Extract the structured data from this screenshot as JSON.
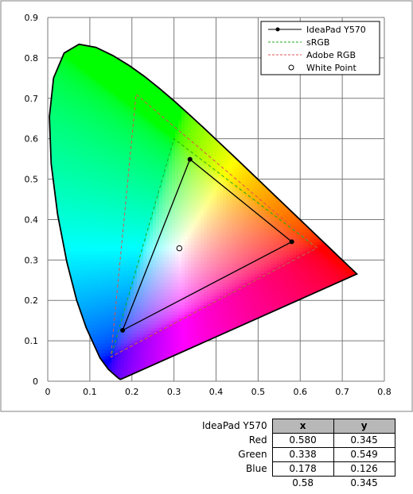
{
  "chart_data": {
    "type": "scatter",
    "title": "",
    "xlabel": "",
    "ylabel": "",
    "xlim": [
      0,
      0.8
    ],
    "ylim": [
      0,
      0.9
    ],
    "x_ticks": [
      "0",
      "0.1",
      "0.2",
      "0.3",
      "0.4",
      "0.5",
      "0.6",
      "0.7",
      "0.8"
    ],
    "y_ticks": [
      "0",
      "0.1",
      "0.2",
      "0.3",
      "0.4",
      "0.5",
      "0.6",
      "0.7",
      "0.8",
      "0.9"
    ],
    "grid": true,
    "legend_position": "top-right",
    "series": [
      {
        "name": "IdeaPad Y570",
        "style": "solid-line-markers",
        "color": "#000000",
        "points": [
          [
            0.58,
            0.345
          ],
          [
            0.338,
            0.549
          ],
          [
            0.178,
            0.126
          ]
        ]
      },
      {
        "name": "sRGB",
        "style": "dashed",
        "color": "#22aa22",
        "points": [
          [
            0.64,
            0.33
          ],
          [
            0.3,
            0.6
          ],
          [
            0.15,
            0.06
          ]
        ]
      },
      {
        "name": "Adobe RGB",
        "style": "dashed",
        "color": "#e05050",
        "points": [
          [
            0.64,
            0.33
          ],
          [
            0.21,
            0.71
          ],
          [
            0.15,
            0.06
          ]
        ]
      },
      {
        "name": "White Point",
        "style": "open-circle",
        "color": "#000000",
        "points": [
          [
            0.3127,
            0.329
          ]
        ]
      }
    ]
  },
  "table": {
    "title": "IdeaPad Y570",
    "col_x": "x",
    "col_y": "y",
    "rows": [
      {
        "label": "Red",
        "x": "0.580",
        "y": "0.345"
      },
      {
        "label": "Green",
        "x": "0.338",
        "y": "0.549"
      },
      {
        "label": "Blue",
        "x": "0.178",
        "y": "0.126"
      }
    ],
    "extra": {
      "x": "0.58",
      "y": "0.345"
    }
  }
}
